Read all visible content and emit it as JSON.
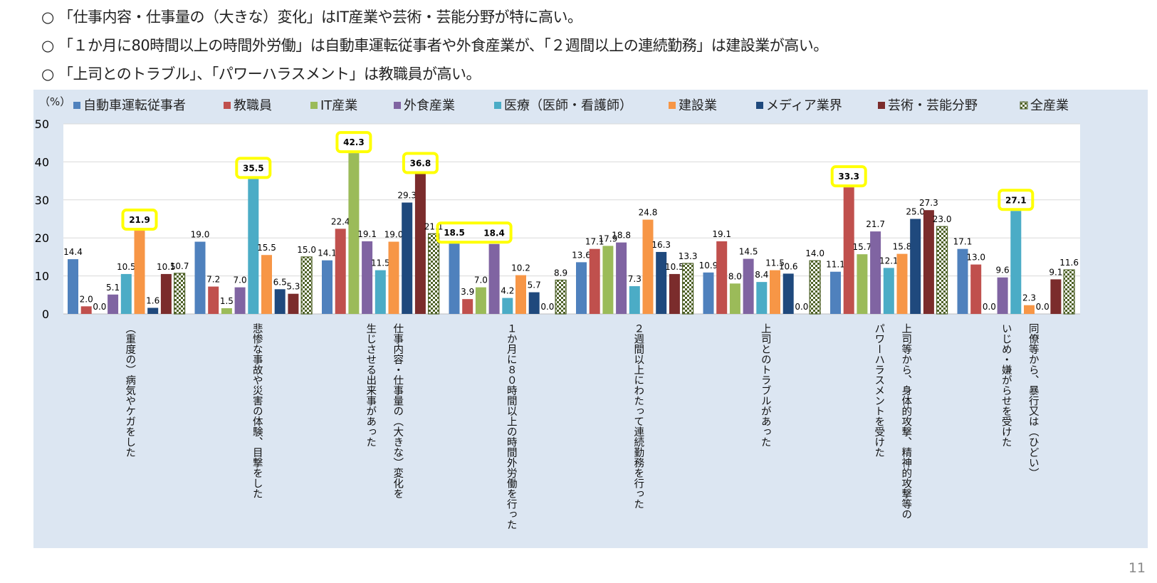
{
  "bullets": [
    "「仕事内容・仕事量の（大きな）変化」はIT産業や芸術・芸能分野が特に高い。",
    "「１か月に80時間以上の時間外労働」は自動車運転従事者や外食産業が、「２週間以上の連続勤務」は建設業が高い。",
    "「上司とのトラブル」、「パワーハラスメント」は教職員が高い。"
  ],
  "bullet_mark": "○",
  "page_number": "11",
  "colors": {
    "panel_bg": "#dce6f2",
    "plot_bg": "#ffffff",
    "highlight": "#ffff00"
  },
  "chart_data": {
    "type": "bar",
    "unit_label": "（%）",
    "ylim": [
      0,
      50
    ],
    "yticks": [
      "0",
      "10",
      "20",
      "30",
      "40",
      "50"
    ],
    "grid": true,
    "legend_position": "top",
    "categories": [
      [
        "（重度の）病気やケガをした"
      ],
      [
        "悲惨な事故や災害の体験、目撃をした"
      ],
      [
        "仕事内容・仕事量の（大きな）変化を",
        "生じさせる出来事があった"
      ],
      [
        "１か月に８０時間以上の時間外労働を行った"
      ],
      [
        "２週間以上にわたって連続勤務を行った"
      ],
      [
        "上司とのトラブルがあった"
      ],
      [
        "上司等から、身体的攻撃、精神的攻撃等の",
        "パワーハラスメントを受けた"
      ],
      [
        "同僚等から、暴行又は（ひどい）",
        "いじめ・嫌がらせを受けた"
      ]
    ],
    "series": [
      {
        "name": "自動車運転従事者",
        "color": "#4f81bd",
        "pattern": "solid",
        "values": [
          "14.4",
          "19.0",
          "14.1",
          "18.5",
          "13.6",
          "10.9",
          "11.1",
          "17.1"
        ]
      },
      {
        "name": "教職員",
        "color": "#c0504d",
        "pattern": "solid",
        "values": [
          "2.0",
          "7.2",
          "22.4",
          "3.9",
          "17.1",
          "19.1",
          "33.3",
          "13.0"
        ]
      },
      {
        "name": "IT産業",
        "color": "#9bbb59",
        "pattern": "solid",
        "values": [
          "0.0",
          "1.5",
          "42.3",
          "7.0",
          "17.9",
          "8.0",
          "15.7",
          "0.0"
        ]
      },
      {
        "name": "外食産業",
        "color": "#8064a2",
        "pattern": "solid",
        "values": [
          "5.1",
          "7.0",
          "19.1",
          "18.4",
          "18.8",
          "14.5",
          "21.7",
          "9.6"
        ]
      },
      {
        "name": "医療（医師・看護師）",
        "color": "#4bacc6",
        "pattern": "solid",
        "values": [
          "10.5",
          "35.5",
          "11.5",
          "4.2",
          "7.3",
          "8.4",
          "12.1",
          "27.1"
        ]
      },
      {
        "name": "建設業",
        "color": "#f79646",
        "pattern": "solid",
        "values": [
          "21.9",
          "15.5",
          "19.0",
          "10.2",
          "24.8",
          "11.5",
          "15.8",
          "2.3"
        ]
      },
      {
        "name": "メディア業界",
        "color": "#1f497d",
        "pattern": "solid",
        "values": [
          "1.6",
          "6.5",
          "29.3",
          "5.7",
          "16.3",
          "10.6",
          "25.0",
          "0.0"
        ]
      },
      {
        "name": "芸術・芸能分野",
        "color": "#7b2c2c",
        "pattern": "solid",
        "values": [
          "10.5",
          "5.3",
          "36.8",
          "0.0",
          "10.5",
          "0.0",
          "27.3",
          "9.1"
        ]
      },
      {
        "name": "全産業",
        "color": "#4f6228",
        "pattern": "checker",
        "values": [
          "10.7",
          "15.0",
          "21.1",
          "8.9",
          "13.3",
          "14.0",
          "23.0",
          "11.6"
        ]
      }
    ],
    "highlights": [
      {
        "category": 0,
        "series": [
          5
        ]
      },
      {
        "category": 1,
        "series": [
          4
        ]
      },
      {
        "category": 2,
        "series": [
          2
        ]
      },
      {
        "category": 2,
        "series": [
          7
        ]
      },
      {
        "category": 3,
        "series": [
          0,
          3
        ]
      },
      {
        "category": 6,
        "series": [
          1
        ]
      },
      {
        "category": 7,
        "series": [
          4
        ]
      }
    ]
  }
}
